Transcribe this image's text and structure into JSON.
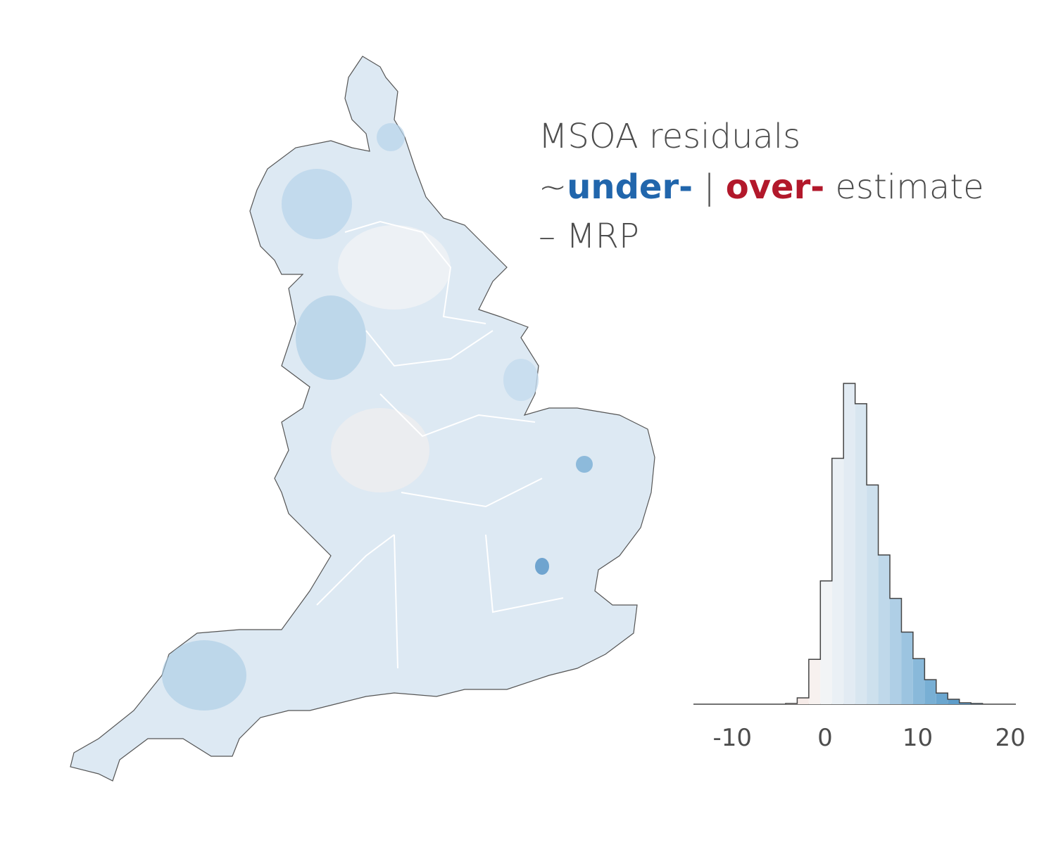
{
  "title": {
    "line1": "MSOA residuals",
    "prefix": "~",
    "under": "under-",
    "separator": " | ",
    "over": "over-",
    "suffix": " estimate",
    "line3": "– MRP"
  },
  "chart_data": {
    "type": "histogram",
    "bins": [
      -4.25,
      -3,
      -1.75,
      -0.5,
      0.75,
      2,
      3.25,
      4.5,
      5.75,
      7,
      8.25,
      9.5,
      10.75,
      12,
      13.25,
      14.5,
      15.75,
      17
    ],
    "values": [
      1,
      9,
      64,
      176,
      351,
      458,
      429,
      313,
      213,
      151,
      103,
      65,
      35,
      16,
      7,
      2,
      1
    ],
    "colors": [
      "#f5e4df",
      "#f6ebe8",
      "#f7f1ef",
      "#f2f4f6",
      "#eaf0f5",
      "#e2ebf3",
      "#d8e6f0",
      "#cde0ed",
      "#bfd8ea",
      "#afcfe6",
      "#9cc4e0",
      "#89b9da",
      "#78afd4",
      "#6aa6cf",
      "#5e9dca",
      "#5595c6",
      "#4d8fc2"
    ],
    "xlim": [
      -14.2,
      20.6
    ],
    "xticks": [
      -10,
      0,
      10,
      20
    ],
    "ylim": [
      0,
      460
    ]
  }
}
